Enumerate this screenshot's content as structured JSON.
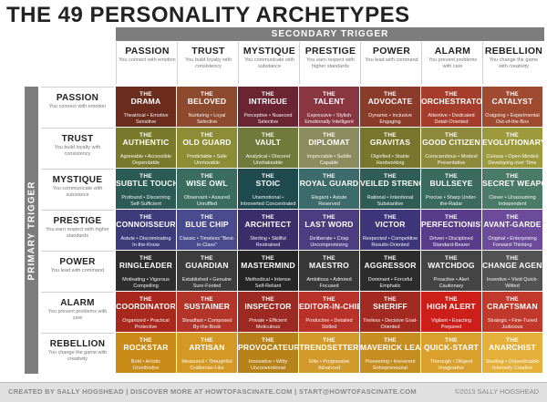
{
  "title": "THE 49 PERSONALITY ARCHETYPES",
  "secondary_trigger_label": "SECONDARY TRIGGER",
  "primary_trigger_label": "PRIMARY TRIGGER",
  "columns": [
    {
      "name": "PASSION",
      "sub": "You connect with emotion"
    },
    {
      "name": "TRUST",
      "sub": "You build loyalty with consistency"
    },
    {
      "name": "MYSTIQUE",
      "sub": "You communicate with substance"
    },
    {
      "name": "PRESTIGE",
      "sub": "You earn respect with higher standards"
    },
    {
      "name": "POWER",
      "sub": "You lead with command"
    },
    {
      "name": "ALARM",
      "sub": "You prevent problems with care"
    },
    {
      "name": "REBELLION",
      "sub": "You change the game with creativity"
    }
  ],
  "rows": [
    {
      "name": "PASSION",
      "sub": "You connect with emotion"
    },
    {
      "name": "TRUST",
      "sub": "You build loyalty with consistency"
    },
    {
      "name": "MYSTIQUE",
      "sub": "You communicate with substance"
    },
    {
      "name": "PRESTIGE",
      "sub": "You earn respect with higher standards"
    },
    {
      "name": "POWER",
      "sub": "You lead with command"
    },
    {
      "name": "ALARM",
      "sub": "You prevent problems with care"
    },
    {
      "name": "REBELLION",
      "sub": "You change the game with creativity"
    }
  ],
  "cell_prefix": "THE",
  "cells": [
    [
      {
        "name": "DRAMA",
        "adj": "Theatrical • Emotive Sensitive",
        "color": "#6b2b1d"
      },
      {
        "name": "BELOVED",
        "adj": "Nurturing • Loyal Selective",
        "color": "#8e4a2f"
      },
      {
        "name": "INTRIGUE",
        "adj": "Perceptive • Nuanced Selective",
        "color": "#6b2432"
      },
      {
        "name": "TALENT",
        "adj": "Expressive • Stylish Emotionally Intelligent",
        "color": "#8a3640"
      },
      {
        "name": "ADVOCATE",
        "adj": "Dynamic • Inclusive Engaging",
        "color": "#8b3b2a"
      },
      {
        "name": "ORCHESTRATOR",
        "adj": "Attentive • Dedicated Detail-Oriented",
        "color": "#a53c2c"
      },
      {
        "name": "CATALYST",
        "adj": "Outgoing • Experimental Out-of-the-Box",
        "color": "#a04a32"
      }
    ],
    [
      {
        "name": "AUTHENTIC",
        "adj": "Agreeable • Accessible Dependable",
        "color": "#7a7a2c"
      },
      {
        "name": "OLD GUARD",
        "adj": "Predictable • Safe Unmovable",
        "color": "#8d8d35"
      },
      {
        "name": "VAULT",
        "adj": "Analytical • Discreet Unshakeable",
        "color": "#707a3a"
      },
      {
        "name": "DIPLOMAT",
        "adj": "Impeccable • Subtle Capable",
        "color": "#8c8d5e"
      },
      {
        "name": "GRAVITAS",
        "adj": "Dignified • Stable Hardworking",
        "color": "#78762d"
      },
      {
        "name": "GOOD CITIZEN",
        "adj": "Conscientious • Modest Preventative",
        "color": "#8e8a3c"
      },
      {
        "name": "EVOLUTIONARY",
        "adj": "Curious • Open-Minded Developing over Time",
        "color": "#9c9a3c"
      }
    ],
    [
      {
        "name": "SUBTLE TOUCH",
        "adj": "Profound • Discerning Self-Sufficient",
        "color": "#2c5a55"
      },
      {
        "name": "WISE OWL",
        "adj": "Observant • Assured Unruffled",
        "color": "#3a6d5f"
      },
      {
        "name": "STOIC",
        "adj": "Unemotional • Introverted Concentrated",
        "color": "#1f4a4e"
      },
      {
        "name": "ROYAL GUARD",
        "adj": "Elegant • Astute Reserved",
        "color": "#3d6a6a"
      },
      {
        "name": "VEILED STRENGTH",
        "adj": "Rational • Intentional Substantive",
        "color": "#2f5d55"
      },
      {
        "name": "BULLSEYE",
        "adj": "Precise • Sharp Under-the-Radar",
        "color": "#3b6b5c"
      },
      {
        "name": "SECRET WEAPON",
        "adj": "Clever • Unassuming Independent",
        "color": "#4a7a68"
      }
    ],
    [
      {
        "name": "CONNOISSEUR",
        "adj": "Astute • Discriminating In-the-Know",
        "color": "#3f3b7a"
      },
      {
        "name": "BLUE CHIP",
        "adj": "Classic • Timeless \"Best-in-Class\"",
        "color": "#4a4a8e"
      },
      {
        "name": "ARCHITECT",
        "adj": "Sterling • Skillful Restrained",
        "color": "#3a2f6b"
      },
      {
        "name": "LAST WORD",
        "adj": "Deliberate • Crisp Uncompromising",
        "color": "#4b3d80"
      },
      {
        "name": "VICTOR",
        "adj": "Respected • Competitive Results-Oriented",
        "color": "#3e357a"
      },
      {
        "name": "PERFECTIONIST",
        "adj": "Driven • Disciplined Standard-Bearer",
        "color": "#5a3d8a"
      },
      {
        "name": "AVANT-GARDE",
        "adj": "Original • Enterprising Forward-Thinking",
        "color": "#6b4b9a"
      }
    ],
    [
      {
        "name": "RINGLEADER",
        "adj": "Motivating • Vigorous Compelling",
        "color": "#2e2e2e"
      },
      {
        "name": "GUARDIAN",
        "adj": "Established • Genuine Sure-Footed",
        "color": "#3d3d3d"
      },
      {
        "name": "MASTERMIND",
        "adj": "Methodical • Intense Self-Reliant",
        "color": "#262626"
      },
      {
        "name": "MAESTRO",
        "adj": "Ambitious • Admired Focused",
        "color": "#383838"
      },
      {
        "name": "AGGRESSOR",
        "adj": "Dominant • Forceful Emphatic",
        "color": "#2c2c2c"
      },
      {
        "name": "WATCHDOG",
        "adj": "Proactive • Alert Cautionary",
        "color": "#444444"
      },
      {
        "name": "CHANGE AGENT",
        "adj": "Inventive • Vivid Quick-Witted",
        "color": "#525252"
      }
    ],
    [
      {
        "name": "COORDINATOR",
        "adj": "Organized • Practical Protective",
        "color": "#a8281d"
      },
      {
        "name": "SUSTAINER",
        "adj": "Steadfast • Composed By-the-Book",
        "color": "#b3352a"
      },
      {
        "name": "INSPECTOR",
        "adj": "Private • Efficient Meticulous",
        "color": "#9c2a22"
      },
      {
        "name": "EDITOR-IN-CHIEF",
        "adj": "Productive • Detailed Skilled",
        "color": "#b8322a"
      },
      {
        "name": "SHERIFF",
        "adj": "Tireless • Decisive Goal-Oriented",
        "color": "#a32a20"
      },
      {
        "name": "HIGH ALERT",
        "adj": "Vigilant • Exacting Prepared",
        "color": "#cc1f1a"
      },
      {
        "name": "CRAFTSMAN",
        "adj": "Strategic • Fine-Tuned Judicious",
        "color": "#c0392b"
      }
    ],
    [
      {
        "name": "ROCKSTAR",
        "adj": "Bold • Artistic Unorthodox",
        "color": "#c98a17"
      },
      {
        "name": "ARTISAN",
        "adj": "Measured • Thoughtful Craftsman-Like",
        "color": "#d49824"
      },
      {
        "name": "PROVOCATEUR",
        "adj": "Innovative • Witty Unconventional",
        "color": "#b8821a"
      },
      {
        "name": "TRENDSETTER",
        "adj": "Elite • Progressive Advanced",
        "color": "#d29a2a"
      },
      {
        "name": "MAVERICK LEADER",
        "adj": "Pioneering • Irreverent Entrepreneurial",
        "color": "#c68d20"
      },
      {
        "name": "QUICK-START",
        "adj": "Thorough • Diligent Imaginative",
        "color": "#d9a02e"
      },
      {
        "name": "ANARCHIST",
        "adj": "Startling • Unpredictable Intensely Creative",
        "color": "#e5b03a"
      }
    ]
  ],
  "footer": {
    "left": "CREATED BY SALLY HOGSHEAD  |  DISCOVER MORE AT HOWTOFASCINATE.COM  |  START@HOWTOFASCINATE.COM",
    "right": "©2013 SALLY HOGSHEAD"
  }
}
